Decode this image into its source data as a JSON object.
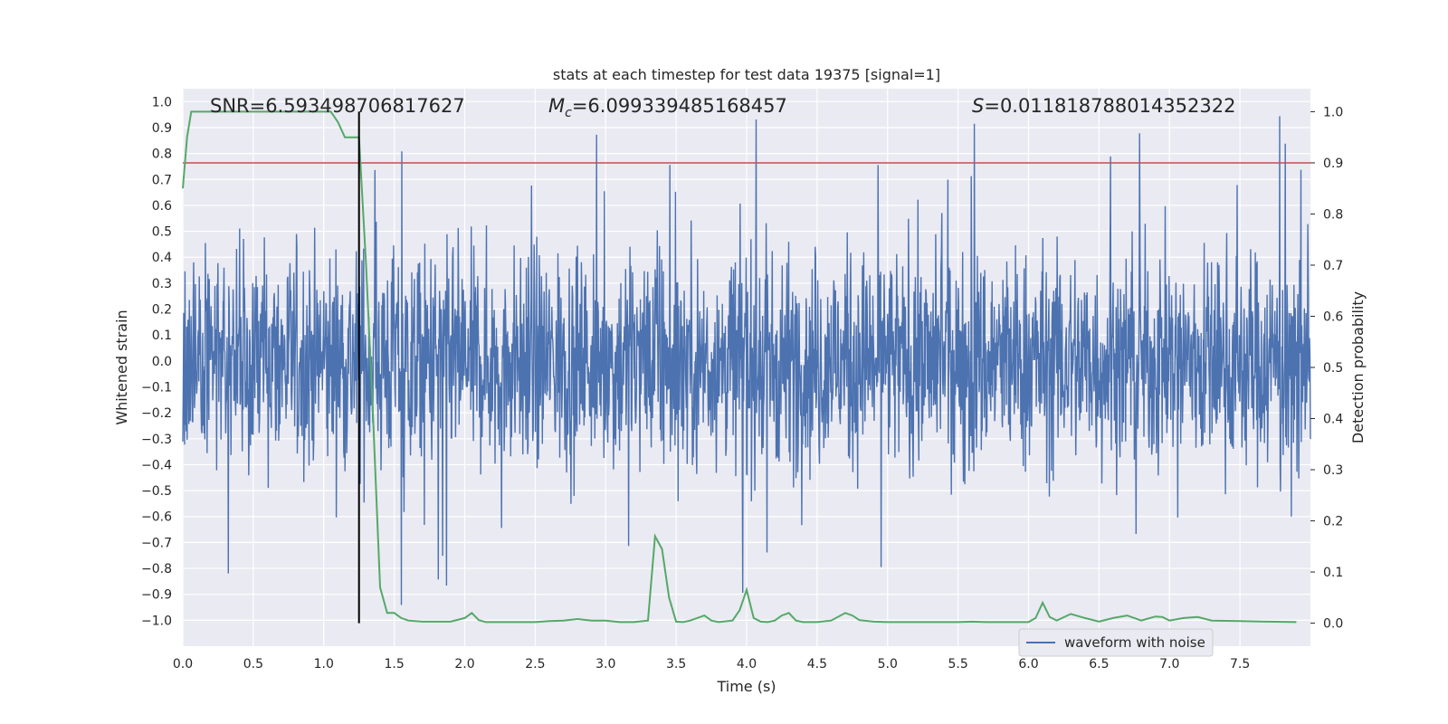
{
  "chart_data": {
    "type": "line",
    "title": "stats at each timestep for test data 19375 [signal=1]",
    "xlabel": "Time (s)",
    "ylabel_left": "Whitened strain",
    "ylabel_right": "Detection probability",
    "xlim": [
      0.0,
      8.0
    ],
    "ylim_left": [
      -1.1,
      1.05
    ],
    "ylim_right": [
      -0.045,
      1.045
    ],
    "x_ticks": [
      "0.0",
      "0.5",
      "1.0",
      "1.5",
      "2.0",
      "2.5",
      "3.0",
      "3.5",
      "4.0",
      "4.5",
      "5.0",
      "5.5",
      "6.0",
      "6.5",
      "7.0",
      "7.5"
    ],
    "y_ticks_left": [
      "1.0",
      "0.9",
      "0.8",
      "0.7",
      "0.6",
      "0.5",
      "0.4",
      "0.3",
      "0.2",
      "0.1",
      "0.0",
      "−0.1",
      "−0.2",
      "−0.3",
      "−0.4",
      "−0.5",
      "−0.6",
      "−0.7",
      "−0.8",
      "−0.9",
      "−1.0"
    ],
    "y_ticks_right": [
      "1.0",
      "0.9",
      "0.8",
      "0.7",
      "0.6",
      "0.5",
      "0.4",
      "0.3",
      "0.2",
      "0.1",
      "0.0"
    ],
    "grid": true,
    "legend_position": "bottom-right",
    "annotations": {
      "snr": "SNR=6.593498706817627",
      "mc_label": "M",
      "mc_sub": "c",
      "mc_value": "=6.099339485168457",
      "s_label": "S",
      "s_value": "=0.011818788014352322"
    },
    "vline_x": 1.25,
    "threshold_y_right": 0.9,
    "series": [
      {
        "name": "waveform with noise",
        "axis": "left",
        "color": "#4c72b0",
        "kind": "noisy strain",
        "typical_range": [
          -0.4,
          0.4
        ],
        "peaks_max": 0.96,
        "peaks_min": -0.99
      },
      {
        "axis": "right",
        "color": "#55a868",
        "x": [
          0.0,
          0.03,
          0.06,
          0.1,
          0.2,
          0.3,
          0.4,
          0.5,
          0.6,
          0.7,
          0.8,
          0.9,
          1.0,
          1.05,
          1.1,
          1.15,
          1.2,
          1.25,
          1.3,
          1.35,
          1.4,
          1.45,
          1.5,
          1.55,
          1.6,
          1.7,
          1.8,
          1.9,
          2.0,
          2.05,
          2.1,
          2.15,
          2.2,
          2.3,
          2.4,
          2.5,
          2.6,
          2.7,
          2.8,
          2.9,
          3.0,
          3.1,
          3.2,
          3.3,
          3.35,
          3.4,
          3.45,
          3.5,
          3.55,
          3.6,
          3.7,
          3.75,
          3.8,
          3.9,
          3.95,
          4.0,
          4.05,
          4.1,
          4.15,
          4.2,
          4.25,
          4.3,
          4.35,
          4.4,
          4.5,
          4.6,
          4.7,
          4.75,
          4.8,
          4.9,
          5.0,
          5.2,
          5.5,
          5.6,
          5.7,
          5.8,
          6.0,
          6.05,
          6.1,
          6.15,
          6.2,
          6.3,
          6.4,
          6.5,
          6.6,
          6.7,
          6.8,
          6.9,
          6.95,
          7.0,
          7.1,
          7.2,
          7.3,
          7.5,
          7.7,
          7.9
        ],
        "y": [
          0.85,
          0.95,
          1.0,
          1.0,
          1.0,
          1.0,
          1.0,
          1.0,
          1.0,
          1.0,
          1.0,
          1.0,
          1.0,
          1.0,
          0.98,
          0.95,
          0.95,
          0.95,
          0.7,
          0.4,
          0.07,
          0.02,
          0.02,
          0.01,
          0.005,
          0.003,
          0.003,
          0.003,
          0.01,
          0.02,
          0.006,
          0.002,
          0.002,
          0.002,
          0.002,
          0.002,
          0.004,
          0.005,
          0.008,
          0.005,
          0.005,
          0.002,
          0.002,
          0.005,
          0.17,
          0.145,
          0.05,
          0.003,
          0.002,
          0.005,
          0.015,
          0.005,
          0.002,
          0.005,
          0.025,
          0.065,
          0.01,
          0.003,
          0.002,
          0.005,
          0.015,
          0.02,
          0.005,
          0.002,
          0.002,
          0.005,
          0.02,
          0.015,
          0.006,
          0.003,
          0.002,
          0.002,
          0.002,
          0.003,
          0.002,
          0.002,
          0.002,
          0.01,
          0.04,
          0.012,
          0.005,
          0.018,
          0.01,
          0.003,
          0.01,
          0.015,
          0.005,
          0.013,
          0.012,
          0.005,
          0.01,
          0.012,
          0.005,
          0.004,
          0.003,
          0.002
        ]
      }
    ]
  }
}
